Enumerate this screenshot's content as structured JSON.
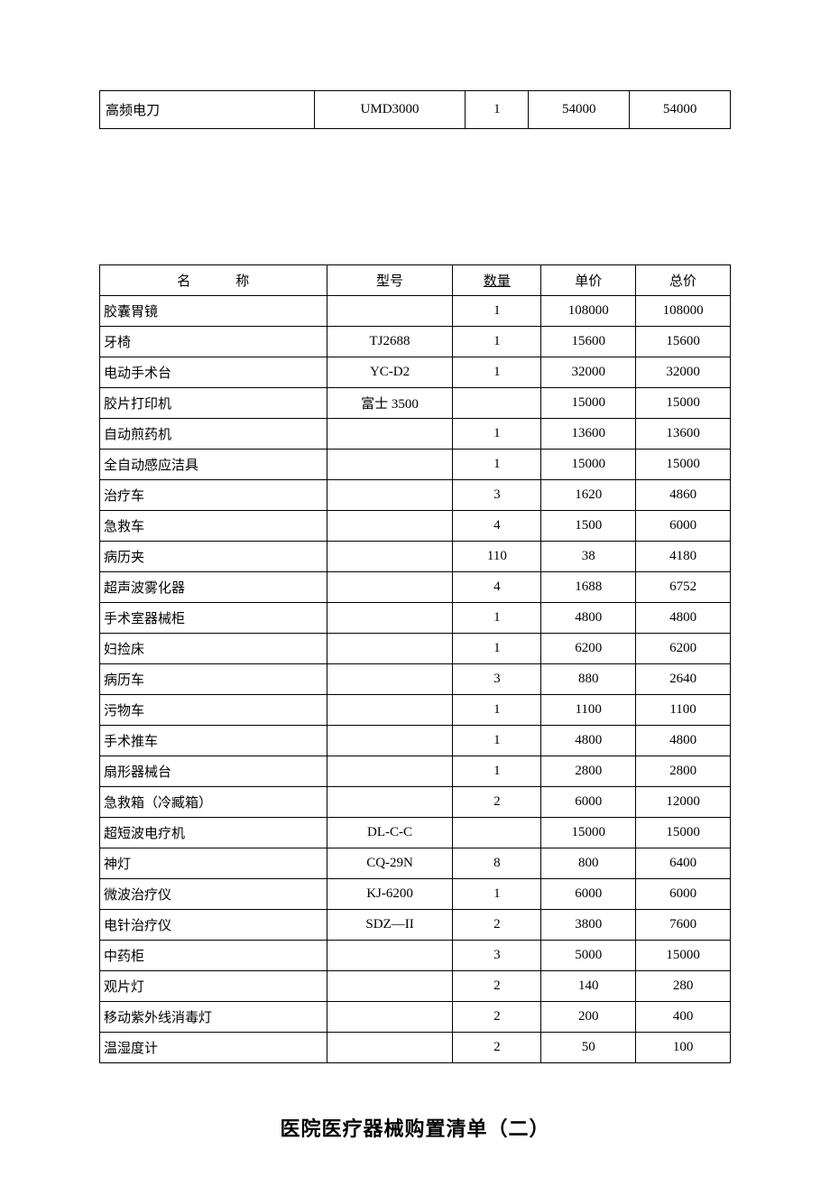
{
  "table1": {
    "rows": [
      {
        "name": "高频电刀",
        "model": "UMD3000",
        "qty": "1",
        "price": "54000",
        "total": "54000"
      }
    ]
  },
  "table2": {
    "headers": {
      "name": "名称",
      "model": "型号",
      "qty": "数量",
      "price": "单价",
      "total": "总价"
    },
    "rows": [
      {
        "name": "胶囊胃镜",
        "model": "",
        "qty": "1",
        "price": "108000",
        "total": "108000"
      },
      {
        "name": "牙椅",
        "model": "TJ2688",
        "qty": "1",
        "price": "15600",
        "total": "15600"
      },
      {
        "name": "电动手术台",
        "model": "YC-D2",
        "qty": "1",
        "price": "32000",
        "total": "32000"
      },
      {
        "name": "胶片打印机",
        "model": "富士 3500",
        "qty": "",
        "price": "15000",
        "total": "15000"
      },
      {
        "name": "自动煎药机",
        "model": "",
        "qty": "1",
        "price": "13600",
        "total": "13600"
      },
      {
        "name": "全自动感应洁具",
        "model": "",
        "qty": "1",
        "price": "15000",
        "total": "15000"
      },
      {
        "name": "治疗车",
        "model": "",
        "qty": "3",
        "price": "1620",
        "total": "4860"
      },
      {
        "name": "急救车",
        "model": "",
        "qty": "4",
        "price": "1500",
        "total": "6000"
      },
      {
        "name": "病历夹",
        "model": "",
        "qty": "110",
        "price": "38",
        "total": "4180"
      },
      {
        "name": "超声波雾化器",
        "model": "",
        "qty": "4",
        "price": "1688",
        "total": "6752"
      },
      {
        "name": "手术室器械柜",
        "model": "",
        "qty": "1",
        "price": "4800",
        "total": "4800"
      },
      {
        "name": "妇捡床",
        "model": "",
        "qty": "1",
        "price": "6200",
        "total": "6200"
      },
      {
        "name": "病历车",
        "model": "",
        "qty": "3",
        "price": "880",
        "total": "2640"
      },
      {
        "name": "污物车",
        "model": "",
        "qty": "1",
        "price": "1100",
        "total": "1100"
      },
      {
        "name": "手术推车",
        "model": "",
        "qty": "1",
        "price": "4800",
        "total": "4800"
      },
      {
        "name": "扇形器械台",
        "model": "",
        "qty": "1",
        "price": "2800",
        "total": "2800"
      },
      {
        "name": "急救箱（冷臧箱）",
        "model": "",
        "qty": "2",
        "price": "6000",
        "total": "12000"
      },
      {
        "name": "超短波电疗机",
        "model": "DL-C-C",
        "qty": "",
        "price": "15000",
        "total": "15000"
      },
      {
        "name": "神灯",
        "model": "CQ-29N",
        "qty": "8",
        "price": "800",
        "total": "6400"
      },
      {
        "name": "微波治疗仪",
        "model": "KJ-6200",
        "qty": "1",
        "price": "6000",
        "total": "6000"
      },
      {
        "name": "电针治疗仪",
        "model": "SDZ—II",
        "qty": "2",
        "price": "3800",
        "total": "7600"
      },
      {
        "name": "中药柜",
        "model": "",
        "qty": "3",
        "price": "5000",
        "total": "15000"
      },
      {
        "name": "观片灯",
        "model": "",
        "qty": "2",
        "price": "140",
        "total": "280"
      },
      {
        "name": "移动紫外线消毒灯",
        "model": "",
        "qty": "2",
        "price": "200",
        "total": "400"
      },
      {
        "name": "温湿度计",
        "model": "",
        "qty": "2",
        "price": "50",
        "total": "100"
      }
    ]
  },
  "heading": "医院医疗器械购置清单（二）"
}
